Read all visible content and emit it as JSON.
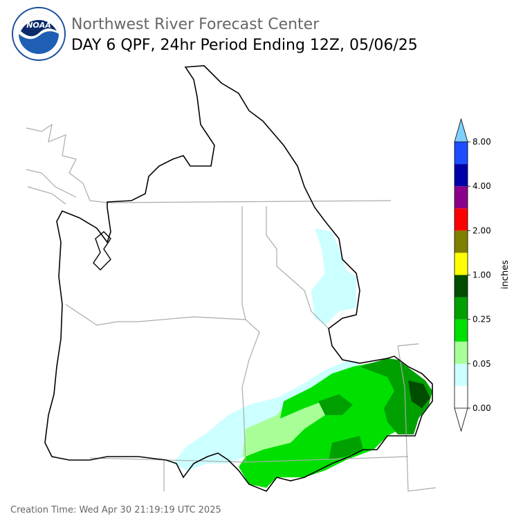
{
  "header": {
    "title": "Northwest River Forecast Center",
    "subtitle": "DAY 6 QPF, 24hr Period Ending 12Z, 05/06/25",
    "logo_text": "NOAA"
  },
  "colorbar": {
    "label": "inches",
    "colors": [
      "#ffffff",
      "#ccffff",
      "#a8ff98",
      "#00e000",
      "#00a000",
      "#004d00",
      "#ffff00",
      "#808000",
      "#ff0000",
      "#8b008b",
      "#0000a8",
      "#1e4cff"
    ],
    "over_color": "#7fd0ff",
    "under_color": "#ffffff",
    "ticks": [
      "0.00",
      "0.05",
      "0.25",
      "1.00",
      "2.00",
      "4.00",
      "8.00"
    ]
  },
  "footer": {
    "creation_time": "Creation Time: Wed Apr 30 21:19:19 UTC 2025"
  }
}
